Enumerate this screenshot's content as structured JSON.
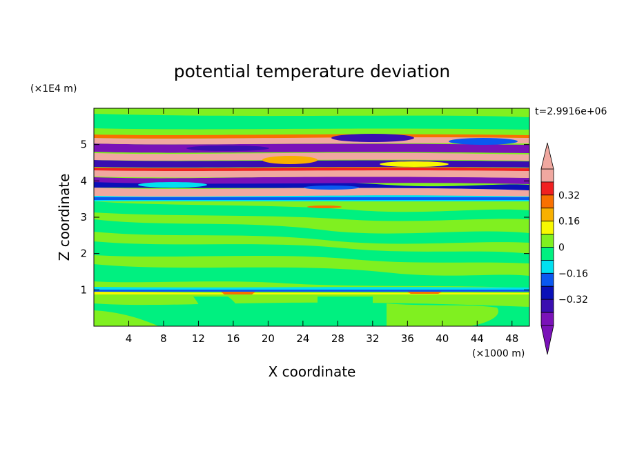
{
  "chart_data": {
    "type": "heatmap",
    "title": "potential temperature deviation",
    "xlabel": "X coordinate",
    "ylabel": "Z coordinate",
    "x_unit": "(×1000 m)",
    "y_unit": "(×1E4 m)",
    "time_label": "t=2.9916e+06",
    "xlim": [
      0,
      50
    ],
    "ylim": [
      0,
      6
    ],
    "x_ticks": [
      4,
      8,
      12,
      16,
      20,
      24,
      28,
      32,
      36,
      40,
      44,
      48
    ],
    "y_ticks": [
      1,
      2,
      3,
      4,
      5
    ],
    "colorbar": {
      "levels": [
        -0.48,
        -0.4,
        -0.32,
        -0.24,
        -0.16,
        -0.08,
        0,
        0.08,
        0.16,
        0.24,
        0.32,
        0.4,
        0.48
      ],
      "tick_labels": [
        "0.32",
        "0.16",
        "0",
        "−0.16",
        "−0.32"
      ],
      "tick_values": [
        0.32,
        0.16,
        0,
        -0.16,
        -0.32
      ],
      "colors": [
        "#7a12b8",
        "#3a0eb0",
        "#0a10b8",
        "#0a58f0",
        "#00e0f0",
        "#00f080",
        "#80f020",
        "#f8f800",
        "#f8b000",
        "#f87000",
        "#f02020",
        "#f0a8a0"
      ],
      "extend": "both"
    },
    "description_of_field": "banded horizontal layers: strong alternating positive/negative layers between z≈3.5 and z≈5.2 (×1E4 m), weak near-zero values elsewhere with a thin disturbed layer near z≈1"
  }
}
